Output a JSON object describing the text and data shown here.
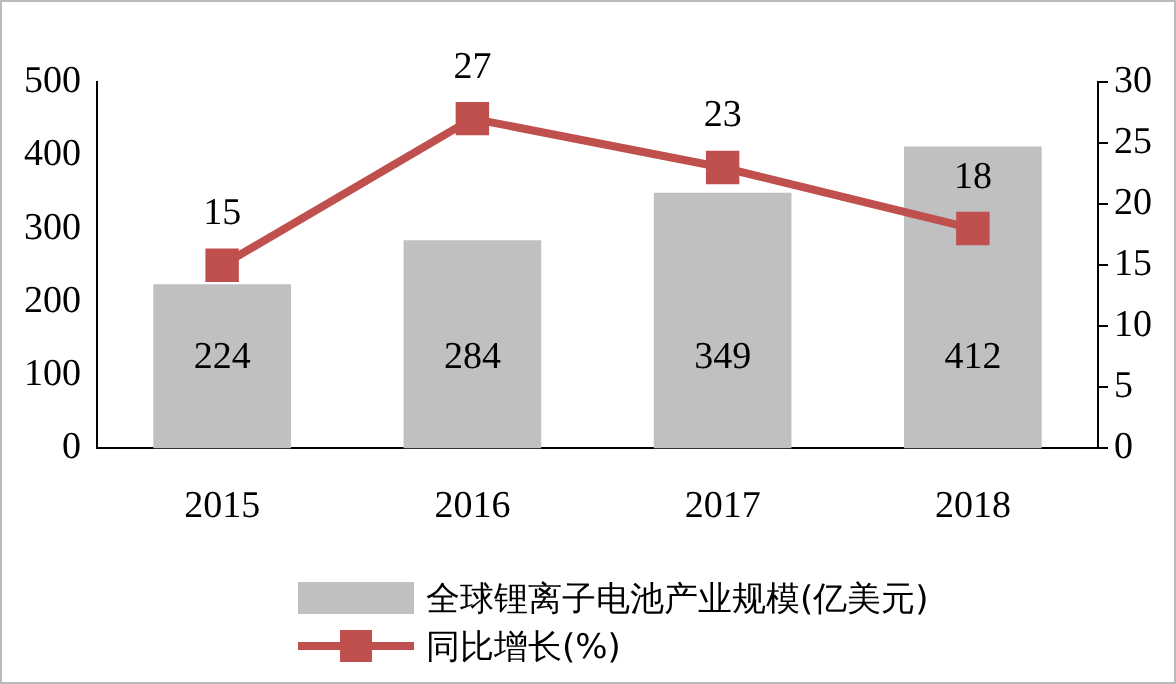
{
  "chart_data": {
    "type": "bar",
    "categories": [
      "2015",
      "2016",
      "2017",
      "2018"
    ],
    "series": [
      {
        "name": "全球锂离子电池产业规模(亿美元)",
        "color": "#c0c0c0",
        "values": [
          224,
          284,
          349,
          412
        ]
      },
      {
        "name": "同比增长(%)",
        "type": "line",
        "axis": "y2",
        "color": "#c0504d",
        "values": [
          15,
          27,
          23,
          18
        ],
        "marker": "square"
      }
    ],
    "ylim": [
      0,
      500
    ],
    "yticks": [
      0,
      100,
      200,
      300,
      400,
      500
    ],
    "y2lim": [
      0,
      30
    ],
    "y2ticks": [
      0,
      5,
      10,
      15,
      20,
      25,
      30
    ],
    "data_labels": true,
    "grid": false,
    "legend": "bottom"
  }
}
